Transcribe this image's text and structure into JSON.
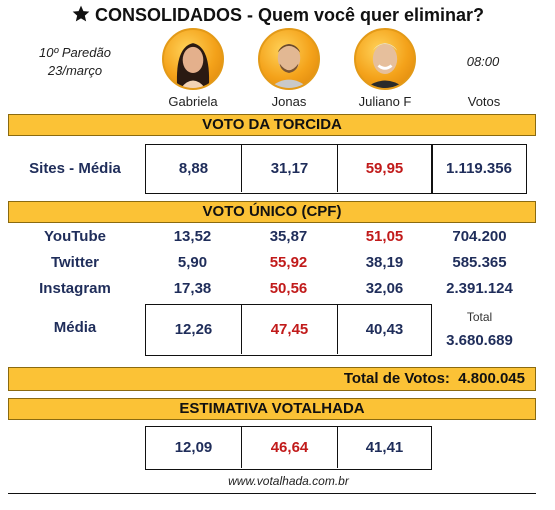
{
  "header": {
    "title": "CONSOLIDADOS - Quem você quer eliminar?",
    "round": "10º Paredão",
    "date": "23/março",
    "time": "08:00"
  },
  "candidates": [
    {
      "name": "Gabriela"
    },
    {
      "name": "Jonas"
    },
    {
      "name": "Juliano F"
    }
  ],
  "votes_label": "Votos",
  "voto_torcida": {
    "title": "VOTO DA TORCIDA",
    "label": "Sites - Média",
    "values": [
      "8,88",
      "31,17",
      "59,95"
    ],
    "votes": "1.119.356"
  },
  "voto_unico": {
    "title": "VOTO ÚNICO (CPF)",
    "rows": [
      {
        "label": "YouTube",
        "values": [
          "13,52",
          "35,87",
          "51,05"
        ],
        "votes": "704.200"
      },
      {
        "label": "Twitter",
        "values": [
          "5,90",
          "55,92",
          "38,19"
        ],
        "votes": "585.365"
      },
      {
        "label": "Instagram",
        "values": [
          "17,38",
          "50,56",
          "32,06"
        ],
        "votes": "2.391.124"
      }
    ],
    "media_label": "Média",
    "media_values": [
      "12,26",
      "47,45",
      "40,43"
    ],
    "total_label": "Total",
    "total_votes": "3.680.689"
  },
  "total_votos": {
    "label": "Total de Votos:",
    "value": "4.800.045"
  },
  "estimativa": {
    "title": "ESTIMATIVA VOTALHADA",
    "values": [
      "12,09",
      "46,64",
      "41,41"
    ]
  },
  "footer": {
    "site": "www.votalhada.com.br"
  },
  "colors": {
    "band": "#fbc236",
    "navy": "#1f2d5a",
    "highlight": "#c11a1a"
  }
}
